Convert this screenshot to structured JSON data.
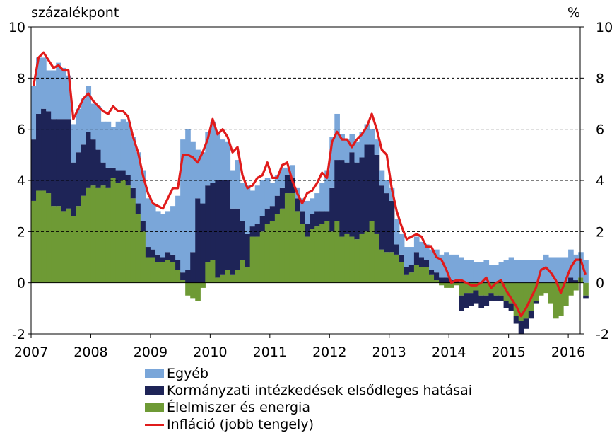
{
  "colors": {
    "egyeb": "#7aa6d9",
    "kormanyzati": "#1e2457",
    "elelmiszer": "#6e9a35",
    "inflacio": "#e01b1b"
  },
  "chart_data": {
    "type": "area",
    "left_axis_label": "százalékpont",
    "right_axis_label": "%",
    "ylim": [
      -2,
      10
    ],
    "yticks": [
      "10",
      "8",
      "6",
      "4",
      "2",
      "0",
      "-2"
    ],
    "ytick_values": [
      10,
      8,
      6,
      4,
      2,
      0,
      -2
    ],
    "xticks": [
      "2007",
      "2008",
      "2009",
      "2010",
      "2011",
      "2012",
      "2013",
      "2014",
      "2015",
      "2016"
    ],
    "xtick_values": [
      2007,
      2008,
      2009,
      2010,
      2011,
      2012,
      2013,
      2014,
      2015,
      2016
    ],
    "grid": "horizontal-dashed",
    "legend_position": "bottom",
    "x_start": 2007.0,
    "x_step": 0.08333,
    "series": [
      {
        "name": "Élelmiszer és energia",
        "kind": "stacked-bar",
        "values": [
          3.2,
          3.6,
          3.6,
          3.5,
          3.0,
          3.0,
          2.8,
          2.9,
          2.6,
          3.0,
          3.4,
          3.7,
          3.8,
          3.7,
          3.8,
          3.7,
          4.1,
          3.9,
          4.0,
          3.8,
          3.3,
          2.7,
          2.0,
          1.0,
          1.0,
          0.8,
          0.8,
          0.9,
          0.8,
          0.5,
          0.1,
          -0.5,
          -0.6,
          -0.7,
          -0.2,
          0.8,
          0.9,
          0.2,
          0.3,
          0.5,
          0.3,
          0.5,
          0.9,
          0.6,
          1.8,
          1.8,
          2.0,
          2.3,
          2.4,
          2.7,
          2.9,
          3.5,
          3.5,
          2.8,
          2.3,
          1.8,
          2.1,
          2.2,
          2.3,
          2.4,
          2.0,
          2.4,
          1.8,
          1.9,
          1.8,
          1.7,
          1.9,
          2.0,
          2.4,
          1.9,
          1.3,
          1.2,
          1.2,
          1.1,
          0.8,
          0.3,
          0.4,
          0.7,
          0.6,
          0.6,
          0.3,
          0.1,
          -0.1,
          -0.2,
          -0.2,
          -0.1,
          -0.5,
          -0.4,
          -0.4,
          -0.3,
          -0.5,
          -0.5,
          -0.4,
          -0.5,
          -0.5,
          -0.7,
          -0.8,
          -1.3,
          -1.5,
          -1.4,
          -1.1,
          -0.7,
          -0.5,
          -0.4,
          -0.8,
          -1.4,
          -1.3,
          -0.9,
          -0.5,
          -0.3,
          0.2,
          -0.5
        ]
      },
      {
        "name": "Kormányzati intézkedések elsődleges hatásai",
        "kind": "stacked-bar",
        "values": [
          2.4,
          3.0,
          3.2,
          3.2,
          3.4,
          3.4,
          3.6,
          3.5,
          2.1,
          2.1,
          2.0,
          2.2,
          1.8,
          1.5,
          0.9,
          0.8,
          0.4,
          0.5,
          0.4,
          0.4,
          0.4,
          0.4,
          0.4,
          0.4,
          0.3,
          0.3,
          0.2,
          0.3,
          0.3,
          0.4,
          0.3,
          0.5,
          1.2,
          3.3,
          3.1,
          3.0,
          3.0,
          3.8,
          3.7,
          3.5,
          2.6,
          2.4,
          1.5,
          1.3,
          0.4,
          0.5,
          0.6,
          0.6,
          0.6,
          0.7,
          0.8,
          0.7,
          0.6,
          0.5,
          0.5,
          0.5,
          0.6,
          0.6,
          0.5,
          0.4,
          1.7,
          2.4,
          3.0,
          2.8,
          3.3,
          3.0,
          3.0,
          3.4,
          3.0,
          3.1,
          2.5,
          2.3,
          2.0,
          0.4,
          0.3,
          0.3,
          0.3,
          0.5,
          0.4,
          0.3,
          0.2,
          0.3,
          0.2,
          0.2,
          0.1,
          0.1,
          -0.6,
          -0.6,
          -0.5,
          -0.5,
          -0.5,
          -0.4,
          -0.3,
          -0.2,
          -0.2,
          -0.3,
          -0.3,
          -0.3,
          -0.5,
          -0.4,
          -0.3,
          -0.1,
          0.0,
          0.0,
          0.0,
          0.0,
          0.0,
          0.0,
          0.2,
          0.1,
          0.0,
          -0.1
        ]
      },
      {
        "name": "Egyéb",
        "kind": "stacked-bar",
        "values": [
          2.1,
          2.2,
          2.0,
          1.6,
          1.9,
          2.2,
          2.0,
          1.7,
          1.5,
          1.7,
          1.8,
          1.8,
          1.4,
          1.7,
          1.6,
          1.8,
          1.6,
          1.9,
          2.0,
          2.1,
          2.0,
          2.0,
          2.0,
          1.9,
          1.8,
          1.7,
          1.7,
          1.6,
          1.9,
          2.5,
          5.2,
          5.5,
          4.3,
          1.9,
          2.0,
          2.1,
          2.4,
          1.8,
          1.6,
          1.5,
          1.5,
          1.9,
          1.5,
          1.9,
          1.4,
          1.5,
          1.4,
          1.2,
          0.9,
          0.8,
          0.8,
          0.3,
          0.5,
          0.4,
          0.5,
          0.9,
          0.6,
          0.7,
          1.1,
          1.6,
          2.0,
          1.8,
          1.0,
          0.9,
          0.7,
          0.8,
          1.0,
          0.8,
          0.6,
          0.6,
          0.6,
          0.5,
          0.5,
          1.0,
          0.8,
          0.8,
          0.7,
          0.6,
          0.6,
          0.6,
          0.8,
          0.9,
          0.9,
          1.0,
          1.0,
          1.0,
          1.0,
          0.9,
          0.9,
          0.8,
          0.8,
          0.9,
          0.7,
          0.7,
          0.8,
          0.9,
          1.0,
          0.9,
          0.9,
          0.9,
          0.9,
          0.9,
          0.9,
          1.1,
          1.0,
          1.0,
          1.0,
          1.0,
          1.1,
          1.0,
          1.0,
          0.9
        ]
      },
      {
        "name": "Infláció (jobb tengely)",
        "kind": "line",
        "values": [
          7.7,
          8.8,
          9.0,
          8.7,
          8.4,
          8.5,
          8.3,
          8.3,
          6.4,
          6.8,
          7.2,
          7.4,
          7.1,
          6.9,
          6.7,
          6.6,
          6.9,
          6.7,
          6.7,
          6.5,
          5.7,
          5.1,
          4.2,
          3.5,
          3.1,
          3.0,
          2.9,
          3.3,
          3.7,
          3.7,
          5.0,
          5.0,
          4.9,
          4.7,
          5.1,
          5.6,
          6.4,
          5.8,
          6.0,
          5.7,
          5.1,
          5.3,
          4.2,
          3.7,
          3.8,
          4.1,
          4.2,
          4.7,
          4.1,
          4.1,
          4.6,
          4.7,
          4.0,
          3.5,
          3.1,
          3.5,
          3.6,
          3.9,
          4.3,
          4.1,
          5.5,
          5.9,
          5.6,
          5.6,
          5.3,
          5.6,
          5.8,
          6.1,
          6.6,
          6.0,
          5.2,
          5.0,
          3.7,
          2.8,
          2.2,
          1.7,
          1.8,
          1.9,
          1.8,
          1.4,
          1.4,
          1.0,
          0.9,
          0.5,
          0.0,
          0.1,
          0.1,
          0.0,
          -0.1,
          -0.1,
          0.0,
          0.2,
          -0.2,
          0.0,
          0.1,
          -0.3,
          -0.6,
          -0.9,
          -1.3,
          -1.0,
          -0.6,
          -0.2,
          0.5,
          0.6,
          0.4,
          0.1,
          -0.4,
          0.1,
          0.6,
          0.9,
          0.9,
          0.3
        ]
      }
    ]
  },
  "legend": {
    "egyeb": "Egyéb",
    "kormanyzati": "Kormányzati intézkedések elsődleges hatásai",
    "elelmiszer": "Élelmiszer és energia",
    "inflacio": "Infláció (jobb tengely)"
  }
}
